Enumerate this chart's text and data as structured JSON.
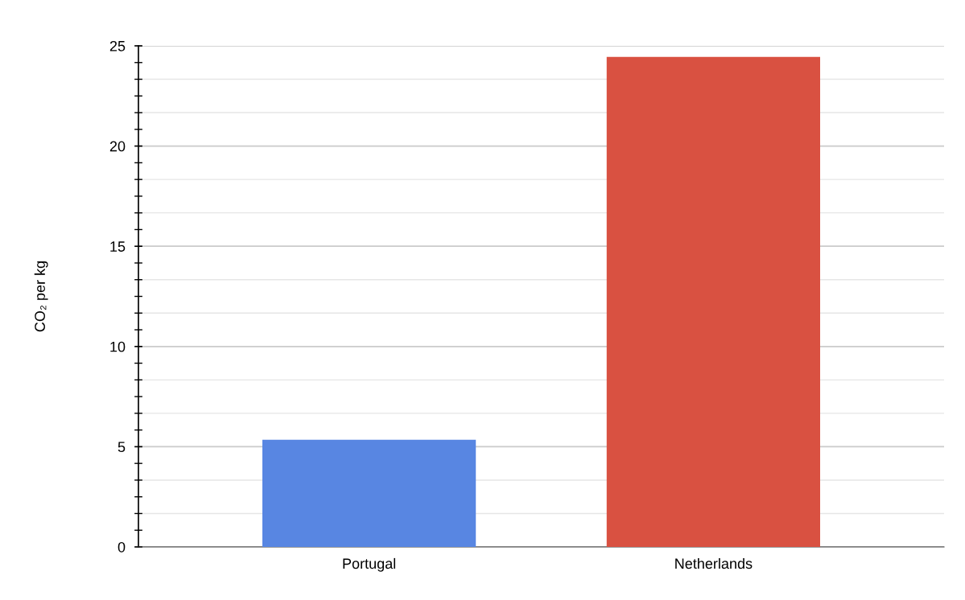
{
  "chart_data": {
    "type": "bar",
    "ylabel": "CO₂ per kg",
    "categories": [
      "Portugal",
      "Netherlands"
    ],
    "values": [
      5.35,
      24.45
    ],
    "colors": [
      "#5886e2",
      "#d95141"
    ],
    "ylim": [
      0,
      25
    ],
    "yticks": [
      0,
      5,
      10,
      15,
      20,
      25
    ],
    "grid": true
  }
}
